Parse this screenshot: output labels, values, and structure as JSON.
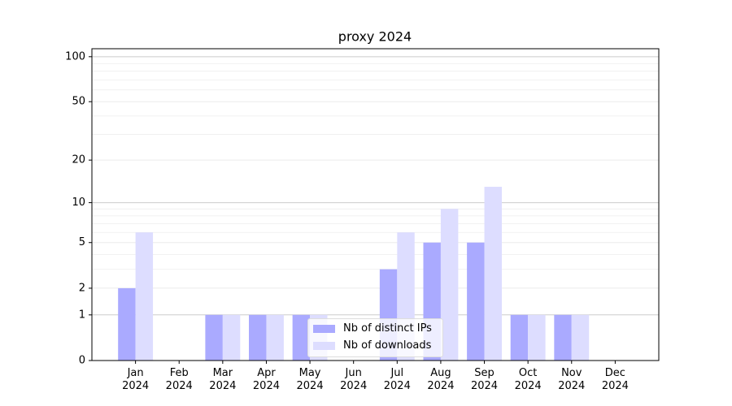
{
  "chart_data": {
    "type": "bar",
    "title": "proxy 2024",
    "categories": [
      "Jan\n2024",
      "Feb\n2024",
      "Mar\n2024",
      "Apr\n2024",
      "May\n2024",
      "Jun\n2024",
      "Jul\n2024",
      "Aug\n2024",
      "Sep\n2024",
      "Oct\n2024",
      "Nov\n2024",
      "Dec\n2024"
    ],
    "series": [
      {
        "name": "Nb of distinct IPs",
        "color": "#aaaaff",
        "values": [
          2,
          0,
          1,
          1,
          1,
          0,
          3,
          5,
          5,
          1,
          1,
          0
        ]
      },
      {
        "name": "Nb of downloads",
        "color": "#ddddff",
        "values": [
          6,
          0,
          1,
          1,
          1,
          0,
          6,
          9,
          13,
          1,
          1,
          0
        ]
      }
    ],
    "yscale": "log1p",
    "ylim": [
      0,
      113
    ],
    "yticks": [
      0,
      1,
      2,
      5,
      10,
      20,
      50,
      100
    ],
    "minor_yticks": [
      3,
      4,
      6,
      7,
      8,
      9,
      30,
      40,
      60,
      70,
      80,
      90
    ],
    "grid": true,
    "legend": "lower center"
  }
}
